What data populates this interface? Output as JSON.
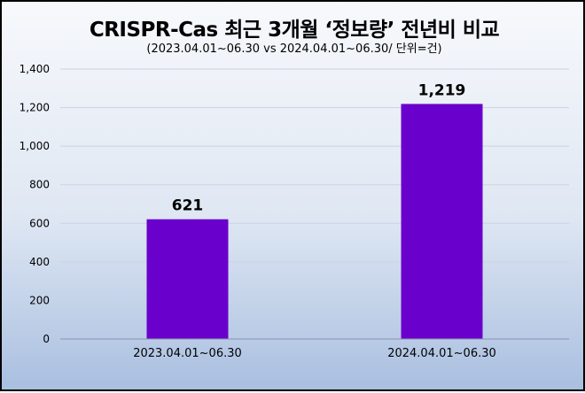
{
  "chart_data": {
    "type": "bar",
    "title": "CRISPR-Cas 최근 3개월 ‘정보량’ 전년비  비교",
    "subtitle": "(2023.04.01~06.30 vs 2024.04.01~06.30/ 단위=건)",
    "categories": [
      "2023.04.01~06.30",
      "2024.04.01~06.30"
    ],
    "values": [
      621,
      1219
    ],
    "value_labels": [
      "621",
      "1,219"
    ],
    "ylim": [
      0,
      1400
    ],
    "yticks": [
      0,
      200,
      400,
      600,
      800,
      1000,
      1200,
      1400
    ],
    "ytick_labels": [
      "0",
      "200",
      "400",
      "600",
      "800",
      "1,000",
      "1,200",
      "1,400"
    ],
    "grid": true,
    "bar_color": "#6a00cc",
    "grid_color": "#c9d3e2"
  }
}
